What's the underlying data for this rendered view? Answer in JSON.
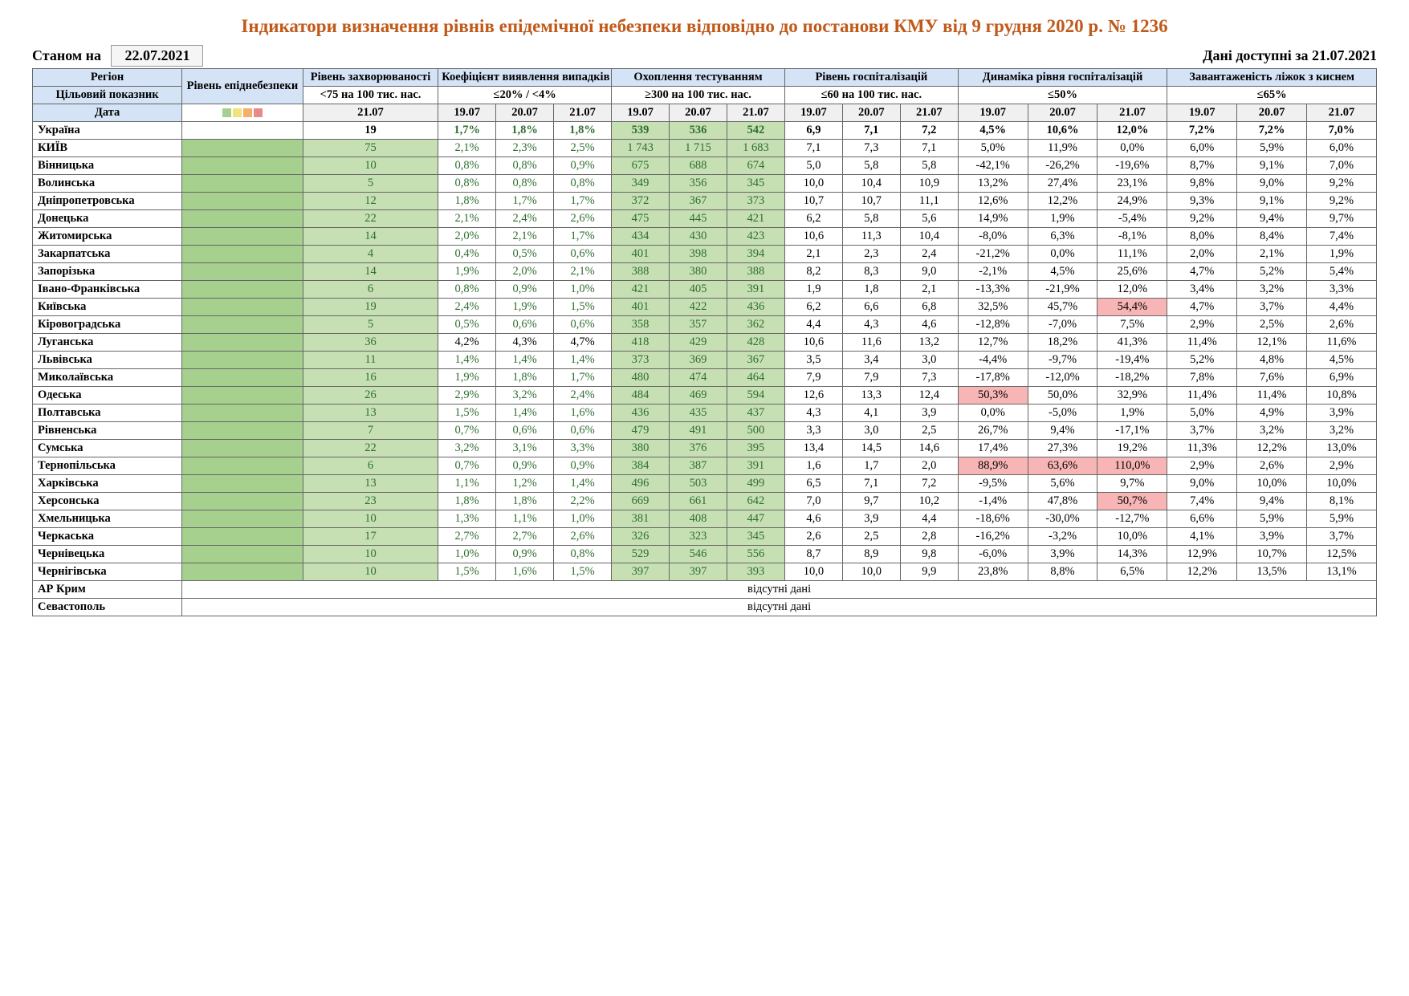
{
  "title": "Індикатори визначення рівнів епідемічної небезпеки відповідно до постанови КМУ від 9 грудня 2020 р. № 1236",
  "asOfLabel": "Станом на",
  "asOfDate": "22.07.2021",
  "dataForLabel": "Дані доступні за",
  "dataForDate": "21.07.2021",
  "colHeaders": {
    "region": "Регіон",
    "level": "Рівень епіднебезпеки",
    "incidence": "Рівень захворюваності",
    "detection": "Коефіцієнт виявлення випадків інфікування",
    "testing": "Охоплення тестуванням",
    "hosp": "Рівень госпіталізацій",
    "hospDyn": "Динаміка рівня госпіталізацій",
    "oxygen": "Завантаженість ліжок з киснем",
    "targetRow": "Цільовий показник",
    "dateRow": "Дата"
  },
  "targets": {
    "incidence": "<75 на 100 тис. нас.",
    "detection": "≤20% / <4%",
    "testing": "≥300 на 100 тис. нас.",
    "hosp": "≤60 на 100 тис. нас.",
    "hospDyn": "≤50%",
    "oxygen": "≤65%"
  },
  "dates": {
    "incidence": "21.07",
    "d1": "19.07",
    "d2": "20.07",
    "d3": "21.07"
  },
  "missing": "відсутні дані",
  "rows": [
    {
      "region": "Україна",
      "levelColor": "",
      "bold": true,
      "inc": "19",
      "incG": false,
      "det": [
        "1,7%",
        "1,8%",
        "1,8%"
      ],
      "detG": [
        true,
        true,
        true
      ],
      "test": [
        "539",
        "536",
        "542"
      ],
      "testG": [
        true,
        true,
        true
      ],
      "hosp": [
        "6,9",
        "7,1",
        "7,2"
      ],
      "dyn": [
        "4,5%",
        "10,6%",
        "12,0%"
      ],
      "dynPink": [
        false,
        false,
        false
      ],
      "oxy": [
        "7,2%",
        "7,2%",
        "7,0%"
      ]
    },
    {
      "region": "КИЇВ",
      "levelColor": "green-bg",
      "inc": "75",
      "incBg": "green-lt",
      "incG": true,
      "det": [
        "2,1%",
        "2,3%",
        "2,5%"
      ],
      "detG": [
        true,
        true,
        true
      ],
      "test": [
        "1 743",
        "1 715",
        "1 683"
      ],
      "testG": [
        true,
        true,
        true
      ],
      "hosp": [
        "7,1",
        "7,3",
        "7,1"
      ],
      "dyn": [
        "5,0%",
        "11,9%",
        "0,0%"
      ],
      "dynPink": [
        false,
        false,
        false
      ],
      "oxy": [
        "6,0%",
        "5,9%",
        "6,0%"
      ]
    },
    {
      "region": "Вінницька",
      "levelColor": "green-bg",
      "inc": "10",
      "incBg": "green-lt",
      "incG": true,
      "det": [
        "0,8%",
        "0,8%",
        "0,9%"
      ],
      "detG": [
        true,
        true,
        true
      ],
      "test": [
        "675",
        "688",
        "674"
      ],
      "testG": [
        true,
        true,
        true
      ],
      "hosp": [
        "5,0",
        "5,8",
        "5,8"
      ],
      "dyn": [
        "-42,1%",
        "-26,2%",
        "-19,6%"
      ],
      "dynPink": [
        false,
        false,
        false
      ],
      "oxy": [
        "8,7%",
        "9,1%",
        "7,0%"
      ]
    },
    {
      "region": "Волинська",
      "levelColor": "green-bg",
      "inc": "5",
      "incBg": "green-lt",
      "incG": true,
      "det": [
        "0,8%",
        "0,8%",
        "0,8%"
      ],
      "detG": [
        true,
        true,
        true
      ],
      "test": [
        "349",
        "356",
        "345"
      ],
      "testG": [
        true,
        true,
        true
      ],
      "hosp": [
        "10,0",
        "10,4",
        "10,9"
      ],
      "dyn": [
        "13,2%",
        "27,4%",
        "23,1%"
      ],
      "dynPink": [
        false,
        false,
        false
      ],
      "oxy": [
        "9,8%",
        "9,0%",
        "9,2%"
      ]
    },
    {
      "region": "Дніпропетровська",
      "levelColor": "green-bg",
      "inc": "12",
      "incBg": "green-lt",
      "incG": true,
      "det": [
        "1,8%",
        "1,7%",
        "1,7%"
      ],
      "detG": [
        true,
        true,
        true
      ],
      "test": [
        "372",
        "367",
        "373"
      ],
      "testG": [
        true,
        true,
        true
      ],
      "hosp": [
        "10,7",
        "10,7",
        "11,1"
      ],
      "dyn": [
        "12,6%",
        "12,2%",
        "24,9%"
      ],
      "dynPink": [
        false,
        false,
        false
      ],
      "oxy": [
        "9,3%",
        "9,1%",
        "9,2%"
      ]
    },
    {
      "region": "Донецька",
      "levelColor": "green-bg",
      "inc": "22",
      "incBg": "green-lt",
      "incG": true,
      "det": [
        "2,1%",
        "2,4%",
        "2,6%"
      ],
      "detG": [
        true,
        true,
        true
      ],
      "test": [
        "475",
        "445",
        "421"
      ],
      "testG": [
        true,
        true,
        true
      ],
      "hosp": [
        "6,2",
        "5,8",
        "5,6"
      ],
      "dyn": [
        "14,9%",
        "1,9%",
        "-5,4%"
      ],
      "dynPink": [
        false,
        false,
        false
      ],
      "oxy": [
        "9,2%",
        "9,4%",
        "9,7%"
      ]
    },
    {
      "region": "Житомирська",
      "levelColor": "green-bg",
      "inc": "14",
      "incBg": "green-lt",
      "incG": true,
      "det": [
        "2,0%",
        "2,1%",
        "1,7%"
      ],
      "detG": [
        true,
        true,
        true
      ],
      "test": [
        "434",
        "430",
        "423"
      ],
      "testG": [
        true,
        true,
        true
      ],
      "hosp": [
        "10,6",
        "11,3",
        "10,4"
      ],
      "dyn": [
        "-8,0%",
        "6,3%",
        "-8,1%"
      ],
      "dynPink": [
        false,
        false,
        false
      ],
      "oxy": [
        "8,0%",
        "8,4%",
        "7,4%"
      ]
    },
    {
      "region": "Закарпатська",
      "levelColor": "green-bg",
      "inc": "4",
      "incBg": "green-lt",
      "incG": true,
      "det": [
        "0,4%",
        "0,5%",
        "0,6%"
      ],
      "detG": [
        true,
        true,
        true
      ],
      "test": [
        "401",
        "398",
        "394"
      ],
      "testG": [
        true,
        true,
        true
      ],
      "hosp": [
        "2,1",
        "2,3",
        "2,4"
      ],
      "dyn": [
        "-21,2%",
        "0,0%",
        "11,1%"
      ],
      "dynPink": [
        false,
        false,
        false
      ],
      "oxy": [
        "2,0%",
        "2,1%",
        "1,9%"
      ]
    },
    {
      "region": "Запорізька",
      "levelColor": "green-bg",
      "inc": "14",
      "incBg": "green-lt",
      "incG": true,
      "det": [
        "1,9%",
        "2,0%",
        "2,1%"
      ],
      "detG": [
        true,
        true,
        true
      ],
      "test": [
        "388",
        "380",
        "388"
      ],
      "testG": [
        true,
        true,
        true
      ],
      "hosp": [
        "8,2",
        "8,3",
        "9,0"
      ],
      "dyn": [
        "-2,1%",
        "4,5%",
        "25,6%"
      ],
      "dynPink": [
        false,
        false,
        false
      ],
      "oxy": [
        "4,7%",
        "5,2%",
        "5,4%"
      ]
    },
    {
      "region": "Івано-Франківська",
      "levelColor": "green-bg",
      "inc": "6",
      "incBg": "green-lt",
      "incG": true,
      "det": [
        "0,8%",
        "0,9%",
        "1,0%"
      ],
      "detG": [
        true,
        true,
        true
      ],
      "test": [
        "421",
        "405",
        "391"
      ],
      "testG": [
        true,
        true,
        true
      ],
      "hosp": [
        "1,9",
        "1,8",
        "2,1"
      ],
      "dyn": [
        "-13,3%",
        "-21,9%",
        "12,0%"
      ],
      "dynPink": [
        false,
        false,
        false
      ],
      "oxy": [
        "3,4%",
        "3,2%",
        "3,3%"
      ]
    },
    {
      "region": "Київська",
      "levelColor": "green-bg",
      "inc": "19",
      "incBg": "green-lt",
      "incG": true,
      "det": [
        "2,4%",
        "1,9%",
        "1,5%"
      ],
      "detG": [
        true,
        true,
        true
      ],
      "test": [
        "401",
        "422",
        "436"
      ],
      "testG": [
        true,
        true,
        true
      ],
      "hosp": [
        "6,2",
        "6,6",
        "6,8"
      ],
      "dyn": [
        "32,5%",
        "45,7%",
        "54,4%"
      ],
      "dynPink": [
        false,
        false,
        true
      ],
      "oxy": [
        "4,7%",
        "3,7%",
        "4,4%"
      ]
    },
    {
      "region": "Кіровоградська",
      "levelColor": "green-bg",
      "inc": "5",
      "incBg": "green-lt",
      "incG": true,
      "det": [
        "0,5%",
        "0,6%",
        "0,6%"
      ],
      "detG": [
        true,
        true,
        true
      ],
      "test": [
        "358",
        "357",
        "362"
      ],
      "testG": [
        true,
        true,
        true
      ],
      "hosp": [
        "4,4",
        "4,3",
        "4,6"
      ],
      "dyn": [
        "-12,8%",
        "-7,0%",
        "7,5%"
      ],
      "dynPink": [
        false,
        false,
        false
      ],
      "oxy": [
        "2,9%",
        "2,5%",
        "2,6%"
      ]
    },
    {
      "region": "Луганська",
      "levelColor": "green-bg",
      "inc": "36",
      "incBg": "green-lt",
      "incG": true,
      "det": [
        "4,2%",
        "4,3%",
        "4,7%"
      ],
      "detG": [
        false,
        false,
        false
      ],
      "test": [
        "418",
        "429",
        "428"
      ],
      "testG": [
        true,
        true,
        true
      ],
      "hosp": [
        "10,6",
        "11,6",
        "13,2"
      ],
      "dyn": [
        "12,7%",
        "18,2%",
        "41,3%"
      ],
      "dynPink": [
        false,
        false,
        false
      ],
      "oxy": [
        "11,4%",
        "12,1%",
        "11,6%"
      ]
    },
    {
      "region": "Львівська",
      "levelColor": "green-bg",
      "inc": "11",
      "incBg": "green-lt",
      "incG": true,
      "det": [
        "1,4%",
        "1,4%",
        "1,4%"
      ],
      "detG": [
        true,
        true,
        true
      ],
      "test": [
        "373",
        "369",
        "367"
      ],
      "testG": [
        true,
        true,
        true
      ],
      "hosp": [
        "3,5",
        "3,4",
        "3,0"
      ],
      "dyn": [
        "-4,4%",
        "-9,7%",
        "-19,4%"
      ],
      "dynPink": [
        false,
        false,
        false
      ],
      "oxy": [
        "5,2%",
        "4,8%",
        "4,5%"
      ]
    },
    {
      "region": "Миколаївська",
      "levelColor": "green-bg",
      "inc": "16",
      "incBg": "green-lt",
      "incG": true,
      "det": [
        "1,9%",
        "1,8%",
        "1,7%"
      ],
      "detG": [
        true,
        true,
        true
      ],
      "test": [
        "480",
        "474",
        "464"
      ],
      "testG": [
        true,
        true,
        true
      ],
      "hosp": [
        "7,9",
        "7,9",
        "7,3"
      ],
      "dyn": [
        "-17,8%",
        "-12,0%",
        "-18,2%"
      ],
      "dynPink": [
        false,
        false,
        false
      ],
      "oxy": [
        "7,8%",
        "7,6%",
        "6,9%"
      ]
    },
    {
      "region": "Одеська",
      "levelColor": "green-bg",
      "inc": "26",
      "incBg": "green-lt",
      "incG": true,
      "det": [
        "2,9%",
        "3,2%",
        "2,4%"
      ],
      "detG": [
        true,
        true,
        true
      ],
      "test": [
        "484",
        "469",
        "594"
      ],
      "testG": [
        true,
        true,
        true
      ],
      "hosp": [
        "12,6",
        "13,3",
        "12,4"
      ],
      "dyn": [
        "50,3%",
        "50,0%",
        "32,9%"
      ],
      "dynPink": [
        true,
        false,
        false
      ],
      "oxy": [
        "11,4%",
        "11,4%",
        "10,8%"
      ]
    },
    {
      "region": "Полтавська",
      "levelColor": "green-bg",
      "inc": "13",
      "incBg": "green-lt",
      "incG": true,
      "det": [
        "1,5%",
        "1,4%",
        "1,6%"
      ],
      "detG": [
        true,
        true,
        true
      ],
      "test": [
        "436",
        "435",
        "437"
      ],
      "testG": [
        true,
        true,
        true
      ],
      "hosp": [
        "4,3",
        "4,1",
        "3,9"
      ],
      "dyn": [
        "0,0%",
        "-5,0%",
        "1,9%"
      ],
      "dynPink": [
        false,
        false,
        false
      ],
      "oxy": [
        "5,0%",
        "4,9%",
        "3,9%"
      ]
    },
    {
      "region": "Рівненська",
      "levelColor": "green-bg",
      "inc": "7",
      "incBg": "green-lt",
      "incG": true,
      "det": [
        "0,7%",
        "0,6%",
        "0,6%"
      ],
      "detG": [
        true,
        true,
        true
      ],
      "test": [
        "479",
        "491",
        "500"
      ],
      "testG": [
        true,
        true,
        true
      ],
      "hosp": [
        "3,3",
        "3,0",
        "2,5"
      ],
      "dyn": [
        "26,7%",
        "9,4%",
        "-17,1%"
      ],
      "dynPink": [
        false,
        false,
        false
      ],
      "oxy": [
        "3,7%",
        "3,2%",
        "3,2%"
      ]
    },
    {
      "region": "Сумська",
      "levelColor": "green-bg",
      "inc": "22",
      "incBg": "green-lt",
      "incG": true,
      "det": [
        "3,2%",
        "3,1%",
        "3,3%"
      ],
      "detG": [
        true,
        true,
        true
      ],
      "test": [
        "380",
        "376",
        "395"
      ],
      "testG": [
        true,
        true,
        true
      ],
      "hosp": [
        "13,4",
        "14,5",
        "14,6"
      ],
      "dyn": [
        "17,4%",
        "27,3%",
        "19,2%"
      ],
      "dynPink": [
        false,
        false,
        false
      ],
      "oxy": [
        "11,3%",
        "12,2%",
        "13,0%"
      ]
    },
    {
      "region": "Тернопільська",
      "levelColor": "green-bg",
      "inc": "6",
      "incBg": "green-lt",
      "incG": true,
      "det": [
        "0,7%",
        "0,9%",
        "0,9%"
      ],
      "detG": [
        true,
        true,
        true
      ],
      "test": [
        "384",
        "387",
        "391"
      ],
      "testG": [
        true,
        true,
        true
      ],
      "hosp": [
        "1,6",
        "1,7",
        "2,0"
      ],
      "dyn": [
        "88,9%",
        "63,6%",
        "110,0%"
      ],
      "dynPink": [
        true,
        true,
        true
      ],
      "oxy": [
        "2,9%",
        "2,6%",
        "2,9%"
      ]
    },
    {
      "region": "Харківська",
      "levelColor": "green-bg",
      "inc": "13",
      "incBg": "green-lt",
      "incG": true,
      "det": [
        "1,1%",
        "1,2%",
        "1,4%"
      ],
      "detG": [
        true,
        true,
        true
      ],
      "test": [
        "496",
        "503",
        "499"
      ],
      "testG": [
        true,
        true,
        true
      ],
      "hosp": [
        "6,5",
        "7,1",
        "7,2"
      ],
      "dyn": [
        "-9,5%",
        "5,6%",
        "9,7%"
      ],
      "dynPink": [
        false,
        false,
        false
      ],
      "oxy": [
        "9,0%",
        "10,0%",
        "10,0%"
      ]
    },
    {
      "region": "Херсонська",
      "levelColor": "green-bg",
      "inc": "23",
      "incBg": "green-lt",
      "incG": true,
      "det": [
        "1,8%",
        "1,8%",
        "2,2%"
      ],
      "detG": [
        true,
        true,
        true
      ],
      "test": [
        "669",
        "661",
        "642"
      ],
      "testG": [
        true,
        true,
        true
      ],
      "hosp": [
        "7,0",
        "9,7",
        "10,2"
      ],
      "dyn": [
        "-1,4%",
        "47,8%",
        "50,7%"
      ],
      "dynPink": [
        false,
        false,
        true
      ],
      "oxy": [
        "7,4%",
        "9,4%",
        "8,1%"
      ]
    },
    {
      "region": "Хмельницька",
      "levelColor": "green-bg",
      "inc": "10",
      "incBg": "green-lt",
      "incG": true,
      "det": [
        "1,3%",
        "1,1%",
        "1,0%"
      ],
      "detG": [
        true,
        true,
        true
      ],
      "test": [
        "381",
        "408",
        "447"
      ],
      "testG": [
        true,
        true,
        true
      ],
      "hosp": [
        "4,6",
        "3,9",
        "4,4"
      ],
      "dyn": [
        "-18,6%",
        "-30,0%",
        "-12,7%"
      ],
      "dynPink": [
        false,
        false,
        false
      ],
      "oxy": [
        "6,6%",
        "5,9%",
        "5,9%"
      ]
    },
    {
      "region": "Черкаська",
      "levelColor": "green-bg",
      "inc": "17",
      "incBg": "green-lt",
      "incG": true,
      "det": [
        "2,7%",
        "2,7%",
        "2,6%"
      ],
      "detG": [
        true,
        true,
        true
      ],
      "test": [
        "326",
        "323",
        "345"
      ],
      "testG": [
        true,
        true,
        true
      ],
      "hosp": [
        "2,6",
        "2,5",
        "2,8"
      ],
      "dyn": [
        "-16,2%",
        "-3,2%",
        "10,0%"
      ],
      "dynPink": [
        false,
        false,
        false
      ],
      "oxy": [
        "4,1%",
        "3,9%",
        "3,7%"
      ]
    },
    {
      "region": "Чернівецька",
      "levelColor": "green-bg",
      "inc": "10",
      "incBg": "green-lt",
      "incG": true,
      "det": [
        "1,0%",
        "0,9%",
        "0,8%"
      ],
      "detG": [
        true,
        true,
        true
      ],
      "test": [
        "529",
        "546",
        "556"
      ],
      "testG": [
        true,
        true,
        true
      ],
      "hosp": [
        "8,7",
        "8,9",
        "9,8"
      ],
      "dyn": [
        "-6,0%",
        "3,9%",
        "14,3%"
      ],
      "dynPink": [
        false,
        false,
        false
      ],
      "oxy": [
        "12,9%",
        "10,7%",
        "12,5%"
      ]
    },
    {
      "region": "Чернігівська",
      "levelColor": "green-bg",
      "inc": "10",
      "incBg": "green-lt",
      "incG": true,
      "det": [
        "1,5%",
        "1,6%",
        "1,5%"
      ],
      "detG": [
        true,
        true,
        true
      ],
      "test": [
        "397",
        "397",
        "393"
      ],
      "testG": [
        true,
        true,
        true
      ],
      "hosp": [
        "10,0",
        "10,0",
        "9,9"
      ],
      "dyn": [
        "23,8%",
        "8,8%",
        "6,5%"
      ],
      "dynPink": [
        false,
        false,
        false
      ],
      "oxy": [
        "12,2%",
        "13,5%",
        "13,1%"
      ]
    },
    {
      "region": "АР Крим",
      "missing": true
    },
    {
      "region": "Севастополь",
      "missing": true
    }
  ]
}
